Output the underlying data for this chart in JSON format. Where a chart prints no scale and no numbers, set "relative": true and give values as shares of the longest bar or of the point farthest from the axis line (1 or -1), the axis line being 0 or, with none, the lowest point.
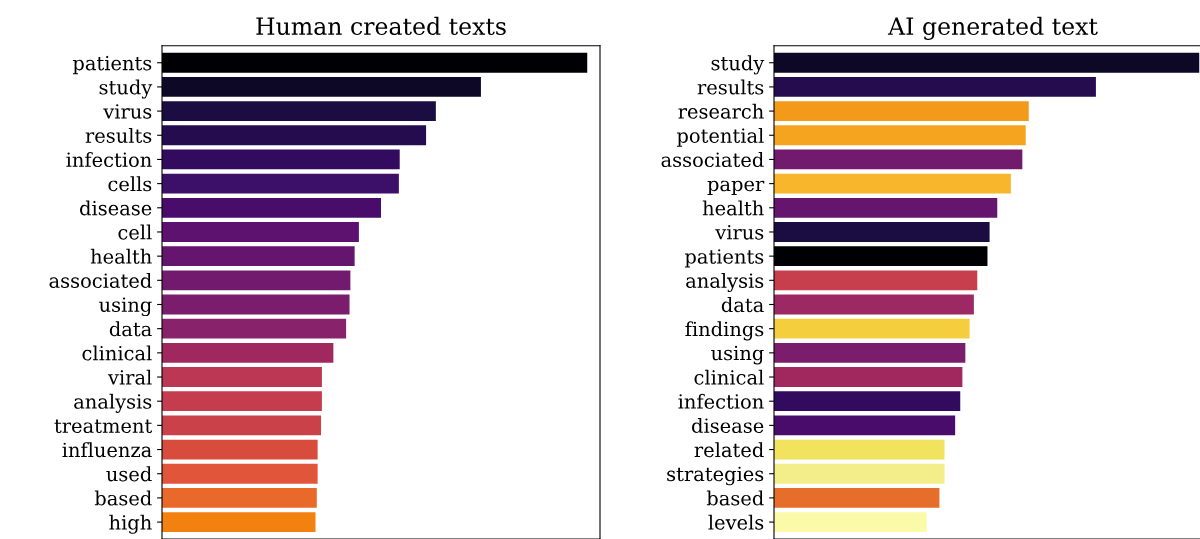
{
  "chart_data": [
    {
      "type": "bar",
      "orientation": "horizontal",
      "relative": true,
      "title": "Human created texts",
      "categories": [
        "patients",
        "study",
        "virus",
        "results",
        "infection",
        "cells",
        "disease",
        "cell",
        "health",
        "associated",
        "using",
        "data",
        "clinical",
        "viral",
        "analysis",
        "treatment",
        "influenza",
        "used",
        "based",
        "high"
      ],
      "values": [
        1,
        0.75,
        0.644,
        0.621,
        0.559,
        0.557,
        0.515,
        0.463,
        0.453,
        0.443,
        0.441,
        0.433,
        0.403,
        0.376,
        0.376,
        0.374,
        0.366,
        0.366,
        0.364,
        0.361
      ],
      "colors": [
        "#000004",
        "#0c0826",
        "#1b0c41",
        "#240c4f",
        "#320a5e",
        "#3c0f68",
        "#4a0c6b",
        "#5c126e",
        "#65156e",
        "#721a6e",
        "#7a1d6d",
        "#88226a",
        "#a0285f",
        "#bc3754",
        "#c43c4e",
        "#cb4149",
        "#d84c3e",
        "#e1563a",
        "#e8692a",
        "#f2810f"
      ]
    },
    {
      "type": "bar",
      "orientation": "horizontal",
      "relative": true,
      "title": "AI generated text",
      "categories": [
        "study",
        "results",
        "research",
        "potential",
        "associated",
        "paper",
        "health",
        "virus",
        "patients",
        "analysis",
        "data",
        "findings",
        "using",
        "clinical",
        "infection",
        "disease",
        "related",
        "strategies",
        "based",
        "levels"
      ],
      "values": [
        1,
        0.757,
        0.599,
        0.592,
        0.584,
        0.557,
        0.525,
        0.507,
        0.502,
        0.478,
        0.47,
        0.46,
        0.45,
        0.443,
        0.438,
        0.426,
        0.401,
        0.401,
        0.389,
        0.359
      ],
      "colors": [
        "#0c0826",
        "#240c4f",
        "#f39a1b",
        "#f5a41f",
        "#721a6e",
        "#f7b62c",
        "#65156e",
        "#1b0c41",
        "#000004",
        "#c73e4c",
        "#9c2964",
        "#f5ce3e",
        "#7a1d6d",
        "#a0285f",
        "#320a5e",
        "#4a0c6b",
        "#f2e35e",
        "#f4ee8a",
        "#e66d2a",
        "#fafaa8"
      ]
    }
  ]
}
